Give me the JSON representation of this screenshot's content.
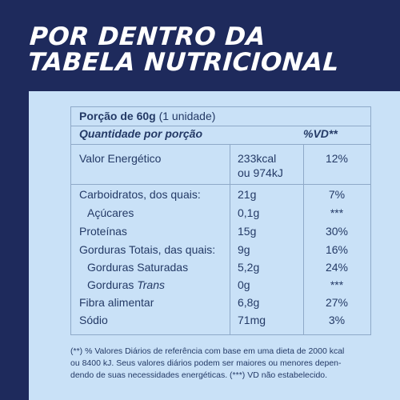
{
  "title": {
    "line1": "POR DENTRO DA",
    "line2": "TABELA NUTRICIONAL"
  },
  "table": {
    "portion_label": "Porção de 60g",
    "portion_unit": "(1 unidade)",
    "header_left": "Quantidade por porção",
    "header_right": "%VD**",
    "rows": [
      {
        "label": "Valor Energético",
        "amount": "233kcal",
        "amount2": "ou 974kJ",
        "vd": "12%"
      },
      {
        "label": "Carboidratos, dos quais:",
        "amount": "21g",
        "vd": "7%"
      },
      {
        "label": "Açúcares",
        "amount": "0,1g",
        "vd": "***"
      },
      {
        "label": "Proteínas",
        "amount": "15g",
        "vd": "30%"
      },
      {
        "label": "Gorduras Totais, das quais:",
        "amount": "9g",
        "vd": "16%"
      },
      {
        "label": "Gorduras Saturadas",
        "amount": "5,2g",
        "vd": "24%"
      },
      {
        "label": "Gorduras",
        "label_italic": "Trans",
        "amount": "0g",
        "vd": "***"
      },
      {
        "label": "Fibra alimentar",
        "amount": "6,8g",
        "vd": "27%"
      },
      {
        "label": "Sódio",
        "amount": "71mg",
        "vd": "3%"
      }
    ]
  },
  "footnote": {
    "line1": "(**) % Valores Diários de referência com base em uma dieta de 2000 kcal",
    "line2": "ou 8400 kJ. Seus valores diários podem ser maiores ou menores depen-",
    "line3": "dendo de suas necessidades energéticas. (***) VD não estabelecido."
  },
  "colors": {
    "background": "#1e2a5c",
    "panel": "#c9e1f7",
    "text": "#243a66"
  }
}
